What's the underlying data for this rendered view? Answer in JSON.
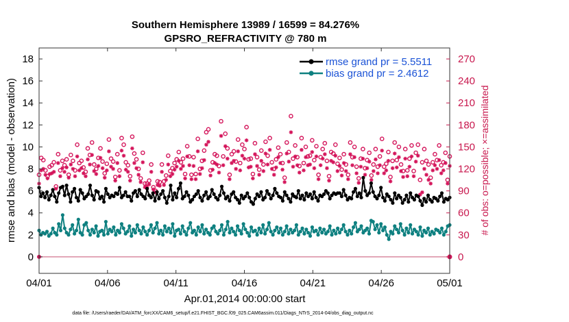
{
  "chart_data": {
    "type": "line",
    "title_line1": "Southern Hemisphere 13989 / 16599 = 84.276%",
    "title_line2": "GPSRO_REFRACTIVITY @ 780 m",
    "xlabel": "Apr.01,2014 00:00:00 start",
    "ylabel_left": "rmse and bias (model - observation)",
    "ylabel_right": "# of obs: o=possible; ×=assimilated",
    "ylim_left": [
      -1.5,
      19
    ],
    "ylim_right": [
      -22.5,
      285
    ],
    "x_range_days": [
      0,
      30
    ],
    "x_ticks": [
      {
        "day": 0,
        "label": "04/01"
      },
      {
        "day": 5,
        "label": "04/06"
      },
      {
        "day": 10,
        "label": "04/11"
      },
      {
        "day": 15,
        "label": "04/16"
      },
      {
        "day": 20,
        "label": "04/21"
      },
      {
        "day": 25,
        "label": "04/26"
      },
      {
        "day": 30,
        "label": "05/01"
      }
    ],
    "y_ticks_left": [
      "0",
      "2",
      "4",
      "6",
      "8",
      "10",
      "12",
      "14",
      "16",
      "18"
    ],
    "y_ticks_right": [
      "0",
      "30",
      "60",
      "90",
      "120",
      "150",
      "180",
      "210",
      "240",
      "270"
    ],
    "legend": [
      {
        "label": "rmse grand pr = 5.5511",
        "color": "#000000"
      },
      {
        "label": "bias grand pr = 2.4612",
        "color": "#0e8080"
      }
    ],
    "series": [
      {
        "name": "rmse",
        "axis": "left",
        "color": "#000000",
        "values": [
          6.3,
          5.5,
          5.8,
          5.4,
          5.9,
          5.2,
          5.6,
          6.1,
          5.5,
          5.0,
          5.8,
          6.3,
          6.4,
          5.6,
          6.5,
          5.7,
          5.0,
          5.9,
          6.2,
          5.4,
          5.1,
          6.1,
          5.8,
          5.3,
          5.5,
          5.7,
          6.5,
          5.6,
          5.2,
          6.0,
          5.9,
          5.3,
          5.5,
          5.0,
          6.2,
          5.7,
          5.4,
          5.6,
          5.5,
          5.8,
          5.7,
          6.3,
          5.4,
          5.6,
          5.9,
          5.5,
          5.5,
          5.1,
          5.8,
          6.0,
          5.5,
          6.1,
          5.7,
          5.5,
          5.3,
          6.2,
          5.6,
          5.4,
          5.8,
          5.1,
          5.9,
          5.3,
          5.7,
          6.0,
          5.4,
          4.9,
          5.5,
          6.5,
          5.2,
          5.8,
          5.4,
          6.2,
          6.7,
          5.3,
          5.5,
          5.9,
          5.6,
          5.0,
          5.2,
          5.5,
          5.7,
          6.0,
          5.4,
          5.1,
          5.6,
          5.9,
          5.3,
          5.5,
          6.1,
          5.7,
          5.4,
          5.2,
          5.6,
          6.4,
          5.8,
          5.3,
          5.5,
          5.1,
          5.7,
          5.9,
          5.4,
          5.2,
          4.9,
          5.6,
          5.3,
          5.5,
          5.8,
          5.4,
          5.0,
          4.8,
          5.3,
          5.7,
          5.5,
          5.9,
          5.2,
          5.4,
          6.0,
          5.7,
          5.3,
          5.6,
          6.2,
          5.8,
          5.5,
          5.4,
          5.1,
          5.9,
          5.6,
          5.3,
          5.0,
          5.7,
          5.5,
          5.4,
          6.0,
          5.3,
          5.6,
          5.2,
          5.8,
          5.5,
          5.7,
          5.3,
          5.9,
          5.4,
          5.1,
          5.6,
          5.5,
          5.7,
          6.0,
          5.8,
          5.3,
          5.6,
          5.8,
          5.7,
          5.8,
          5.8,
          5.5,
          6.1,
          5.6,
          5.2,
          5.4,
          5.3,
          5.9,
          6.2,
          5.5,
          5.8,
          5.4,
          7.2,
          6.0,
          5.6,
          5.8,
          6.7,
          5.9,
          5.5,
          5.3,
          5.6,
          6.3,
          5.4,
          5.1,
          5.7,
          5.5,
          5.2,
          4.9,
          5.8,
          5.3,
          5.6,
          5.4,
          4.9,
          5.2,
          5.6,
          5.0,
          5.8,
          5.4,
          5.2,
          5.6,
          5.5,
          5.1,
          4.7,
          5.3,
          5.0,
          5.6,
          5.2,
          5.0,
          5.4,
          5.3,
          5.1,
          5.5,
          5.8,
          5.0,
          5.3,
          5.2,
          5.4
        ]
      },
      {
        "name": "bias",
        "axis": "left",
        "color": "#0e8080",
        "values": [
          2.4,
          2.0,
          2.2,
          2.1,
          2.3,
          1.9,
          2.1,
          2.6,
          2.2,
          2.0,
          3.0,
          2.4,
          3.8,
          2.6,
          2.2,
          2.0,
          2.5,
          2.9,
          2.1,
          2.4,
          3.4,
          2.2,
          2.0,
          2.9,
          3.1,
          2.4,
          2.0,
          2.5,
          2.2,
          2.8,
          1.9,
          2.3,
          2.4,
          2.0,
          3.2,
          2.1,
          2.5,
          2.3,
          2.7,
          2.0,
          2.4,
          2.2,
          3.0,
          2.6,
          2.1,
          2.3,
          2.8,
          1.9,
          2.5,
          2.2,
          2.9,
          2.4,
          2.1,
          2.7,
          2.3,
          2.0,
          2.4,
          2.9,
          2.2,
          2.6,
          3.1,
          2.1,
          2.4,
          2.0,
          2.8,
          2.3,
          2.6,
          2.2,
          3.0,
          1.9,
          2.4,
          2.5,
          2.1,
          2.8,
          2.3,
          2.0,
          2.6,
          3.1,
          2.2,
          2.4,
          2.0,
          2.7,
          2.3,
          2.9,
          2.1,
          2.5,
          2.2,
          2.0,
          2.6,
          2.8,
          2.3,
          2.1,
          2.4,
          2.9,
          2.0,
          2.5,
          3.2,
          2.2,
          2.6,
          2.3,
          2.0,
          2.8,
          2.4,
          2.1,
          3.0,
          2.5,
          2.2,
          1.9,
          2.7,
          2.3,
          2.4,
          2.0,
          2.6,
          2.2,
          2.9,
          2.1,
          2.5,
          3.1,
          2.3,
          2.0,
          2.4,
          2.7,
          2.2,
          2.6,
          2.0,
          2.3,
          2.8,
          2.1,
          2.5,
          2.2,
          2.4,
          2.9,
          2.0,
          2.3,
          2.6,
          2.1,
          2.5,
          2.2,
          1.9,
          2.7,
          2.3,
          2.4,
          2.0,
          2.6,
          2.2,
          2.5,
          2.1,
          2.3,
          2.8,
          2.0,
          2.4,
          2.1,
          2.6,
          2.2,
          2.5,
          2.9,
          2.3,
          2.0,
          2.4,
          2.1,
          2.7,
          3.1,
          2.3,
          2.5,
          2.8,
          2.2,
          2.4,
          2.6,
          2.1,
          3.3,
          3.2,
          2.5,
          2.9,
          2.2,
          3.0,
          2.4,
          2.7,
          2.0,
          1.6,
          2.3,
          2.1,
          2.8,
          2.5,
          2.2,
          3.0,
          2.4,
          2.0,
          2.6,
          2.2,
          2.9,
          2.1,
          2.5,
          2.3,
          2.0,
          2.7,
          1.9,
          2.4,
          2.2,
          2.6,
          2.0,
          2.3,
          2.1,
          2.5,
          2.4,
          2.2,
          2.6,
          2.0,
          2.3,
          2.8,
          2.9
        ]
      },
      {
        "name": "obs possible",
        "axis": "right",
        "marker": "o",
        "color": "#d4145a",
        "values": [
          112,
          135,
          132,
          118,
          110,
          123,
          125,
          129,
          96,
          140,
          118,
          131,
          125,
          133,
          112,
          139,
          131,
          118,
          153,
          128,
          131,
          122,
          116,
          148,
          139,
          156,
          126,
          120,
          135,
          148,
          130,
          114,
          127,
          160,
          134,
          130,
          109,
          140,
          118,
          162,
          153,
          129,
          125,
          110,
          164,
          141,
          133,
          120,
          107,
          142,
          100,
          100,
          104,
          126,
          95,
          90,
          103,
          102,
          126,
          103,
          111,
          138,
          117,
          121,
          128,
          133,
          143,
          129,
          134,
          113,
          151,
          137,
          112,
          136,
          113,
          161,
          120,
          131,
          145,
          170,
          174,
          118,
          129,
          140,
          138,
          124,
          185,
          137,
          168,
          148,
          112,
          140,
          144,
          130,
          160,
          128,
          153,
          147,
          177,
          133,
          134,
          113,
          155,
          136,
          119,
          145,
          126,
          157,
          138,
          162,
          129,
          120,
          133,
          149,
          140,
          128,
          108,
          156,
          143,
          192,
          134,
          152,
          136,
          124,
          162,
          128,
          150,
          137,
          138,
          159,
          132,
          151,
          112,
          136,
          147,
          155,
          131,
          110,
          143,
          141,
          153,
          127,
          135,
          119,
          140,
          126,
          112,
          156,
          136,
          150,
          123,
          107,
          134,
          147,
          121,
          132,
          142,
          111,
          126,
          147,
          123,
          137,
          161,
          123,
          127,
          143,
          109,
          131,
          156,
          132,
          150,
          126,
          117,
          147,
          118,
          134,
          152,
          117,
          142,
          153,
          105,
          129,
          147,
          131,
          126,
          108,
          129,
          140,
          132,
          152,
          125,
          129,
          142,
          105,
          137
        ]
      },
      {
        "name": "obs assimilated",
        "axis": "right",
        "marker": "x",
        "color": "#d4145a",
        "values": [
          100,
          118,
          120,
          112,
          107,
          113,
          114,
          116,
          93,
          128,
          110,
          121,
          116,
          122,
          108,
          126,
          120,
          110,
          137,
          118,
          121,
          114,
          110,
          133,
          126,
          139,
          117,
          113,
          124,
          135,
          121,
          108,
          118,
          144,
          123,
          120,
          104,
          128,
          110,
          145,
          138,
          119,
          116,
          104,
          148,
          128,
          121,
          112,
          102,
          129,
          95,
          95,
          99,
          116,
          92,
          88,
          98,
          97,
          116,
          98,
          105,
          126,
          110,
          113,
          119,
          123,
          131,
          120,
          124,
          107,
          137,
          125,
          106,
          124,
          106,
          144,
          113,
          121,
          132,
          153,
          157,
          111,
          119,
          128,
          126,
          115,
          165,
          125,
          151,
          134,
          106,
          128,
          131,
          120,
          144,
          118,
          138,
          134,
          159,
          122,
          123,
          107,
          140,
          124,
          112,
          131,
          117,
          141,
          126,
          146,
          120,
          112,
          122,
          136,
          128,
          119,
          102,
          141,
          130,
          170,
          123,
          137,
          125,
          115,
          146,
          118,
          136,
          125,
          126,
          143,
          121,
          137,
          106,
          125,
          134,
          140,
          121,
          104,
          131,
          129,
          138,
          117,
          124,
          111,
          128,
          117,
          106,
          140,
          125,
          136,
          114,
          101,
          123,
          134,
          112,
          121,
          130,
          105,
          117,
          133,
          114,
          125,
          145,
          114,
          118,
          131,
          103,
          121,
          141,
          122,
          136,
          117,
          109,
          134,
          110,
          123,
          137,
          110,
          130,
          138,
          85,
          88,
          120,
          112,
          105,
          100,
          118,
          125,
          120,
          132,
          114,
          118,
          128,
          100,
          124
        ]
      }
    ],
    "footer": "data file: /Users/raeder/DAI/ATM_forcXX/CAM6_setup/f.e21.FHIST_BGC.f09_025.CAM6assim.011/Diags_NTrS_2014-04/obs_diag_output.nc"
  }
}
